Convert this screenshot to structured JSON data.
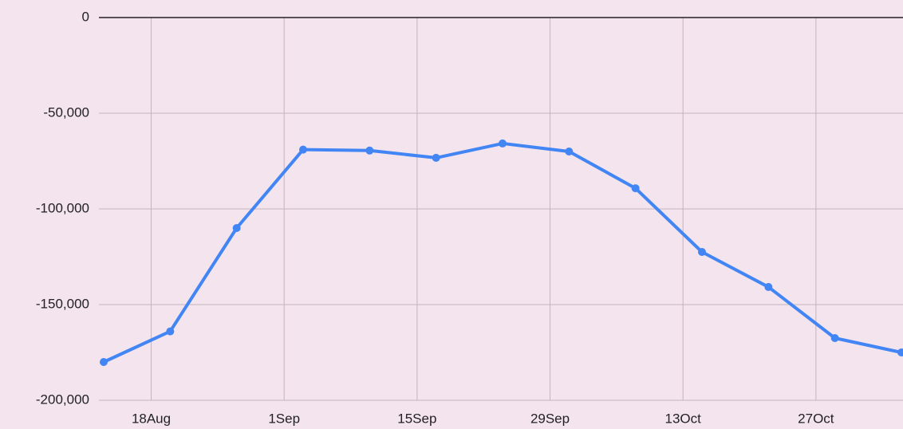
{
  "chart_data": {
    "type": "line",
    "x": [
      "13Aug",
      "20Aug",
      "27Aug",
      "3Sep",
      "10Sep",
      "17Sep",
      "24Sep",
      "1Oct",
      "8Oct",
      "15Oct",
      "22Oct",
      "29Oct",
      "5Nov"
    ],
    "series": [
      {
        "color": "#4285f4",
        "values": [
          -180000,
          -164000,
          -110000,
          -69000,
          -69500,
          -73300,
          -65800,
          -70000,
          -89200,
          -122500,
          -140800,
          -167500,
          -175000
        ]
      }
    ],
    "xlim": [
      "13Aug",
      "5Nov"
    ],
    "xticks": [
      "18Aug",
      "1Sep",
      "15Sep",
      "29Sep",
      "13Oct",
      "27Oct"
    ],
    "ylim": [
      -200000,
      0
    ],
    "yticks": [
      0,
      {
        "value": -50000,
        "label": "-50,000"
      },
      {
        "value": -100000,
        "label": "-100,000"
      },
      {
        "value": -150000,
        "label": "-150,000"
      },
      {
        "value": -200000,
        "label": "-200,000"
      }
    ],
    "grid": true
  }
}
